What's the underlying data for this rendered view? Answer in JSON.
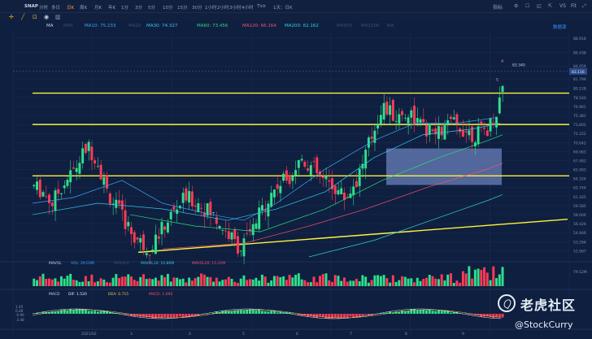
{
  "toolbar": {
    "symbol": "SNAP",
    "timeframes": [
      "分时",
      "多日",
      "日K",
      "周K",
      "月K",
      "年K",
      "1分",
      "3分",
      "5分",
      "10分",
      "15分",
      "30分",
      "1小时",
      "2小时",
      "3小时",
      "4小时",
      "Tick",
      "1天：日K"
    ],
    "active_timeframe": "日K",
    "right_icons": [
      "指标",
      "⚙",
      "☐",
      "◱",
      "⇱",
      "VS",
      "Fit",
      "⤢"
    ]
  },
  "ma_legend": [
    {
      "label": "MA",
      "value": "",
      "color": "#c8d2e4"
    },
    {
      "label": "MA5",
      "value": "",
      "color": "#3a4f7a"
    },
    {
      "label": "MA10: 75.233",
      "value": "",
      "color": "#3da3f2"
    },
    {
      "label": "MA20",
      "value": "",
      "color": "#3a4f7a"
    },
    {
      "label": "MA30: 74.327",
      "value": "",
      "color": "#34c7e8"
    },
    {
      "label": "MA60: 73.456",
      "value": "",
      "color": "#2edb7a"
    },
    {
      "label": "MA120: 66.164",
      "value": "",
      "color": "#ff4f6a"
    },
    {
      "label": "MA200: 62.162",
      "value": "",
      "color": "#2dd3d3"
    },
    {
      "label": "MA500",
      "value": "",
      "color": "#3a4f7a"
    },
    {
      "label": "MA1000",
      "value": "",
      "color": "#3a4f7a"
    },
    {
      "label": "MA",
      "value": "",
      "color": "#3a4f7a"
    },
    {
      "label": "数据源",
      "value": "",
      "color": "#3a8ff0"
    }
  ],
  "price_axis": [
    "88.918",
    "86.438",
    "84.059",
    "81.799",
    "80.128",
    "78.540",
    "76.961",
    "75.381",
    "73.802",
    "72.222",
    "70.642",
    "69.063",
    "67.483",
    "65.903",
    "64.324",
    "62.744",
    "61.165",
    "59.585",
    "58.006",
    "56.426",
    "54.846",
    "53.266",
    "51.687"
  ],
  "price_tag": "83.116",
  "last_price_label": "83.340",
  "volume_legend": {
    "main": "MAVOL",
    "vol": "VOL: 29.03M",
    "mavol5": "MAVOL5",
    "mavol10": "MAVOL10: 10.86M",
    "mavol20": "MAVOL20: 15.31M"
  },
  "volume_axis": [
    "79.52M"
  ],
  "macd_legend": {
    "main": "MACD",
    "dif": "DIF: 1.520",
    "dea": "DEA: 0.715",
    "macd": "MACD: 1.695"
  },
  "macd_axis": [
    "1.45",
    "0.48",
    "-0.96",
    "-3.48"
  ],
  "date_labels": [
    "2021/02",
    "3",
    "4",
    "5",
    "6",
    "7",
    "8",
    "9"
  ],
  "watermark": {
    "brand": "老虎社区",
    "user": "@StockCurry"
  },
  "colors": {
    "up": "#2ee08b",
    "down": "#ff3b55",
    "support": "#fff33b",
    "bg": "#0f1f40",
    "box": "#8aa3e6"
  }
}
